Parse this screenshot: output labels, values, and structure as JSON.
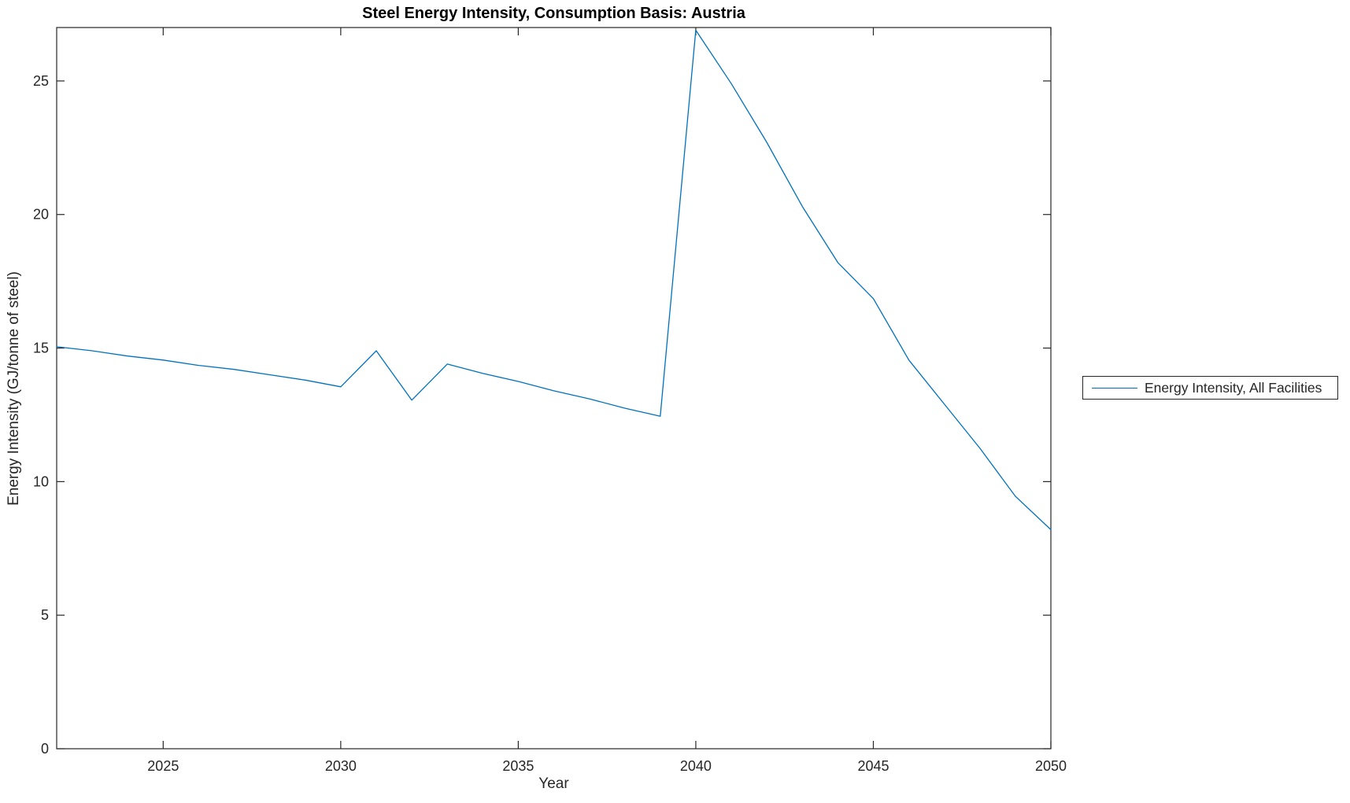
{
  "title": "Steel Energy Intensity, Consumption Basis: Austria",
  "legend": {
    "entries": [
      {
        "label": "Energy Intensity, All Facilities",
        "color": "#0072BD"
      }
    ]
  },
  "colors": {
    "line": "#0072BD",
    "axis": "#262626",
    "title": "#000000",
    "background": "#ffffff"
  },
  "chart_data": {
    "type": "line",
    "title": "Steel Energy Intensity, Consumption Basis: Austria",
    "xlabel": "Year",
    "ylabel": "Energy Intensity (GJ/tonne of steel)",
    "xlim": [
      2022,
      2050
    ],
    "ylim": [
      0,
      27
    ],
    "x_ticks": [
      2025,
      2030,
      2035,
      2040,
      2045,
      2050
    ],
    "y_ticks": [
      0,
      5,
      10,
      15,
      20,
      25
    ],
    "grid": false,
    "box": true,
    "legend_position": "right-outside",
    "series": [
      {
        "name": "Energy Intensity, All Facilities",
        "color": "#0072BD",
        "x": [
          2022,
          2023,
          2024,
          2025,
          2026,
          2027,
          2028,
          2029,
          2030,
          2031,
          2032,
          2033,
          2034,
          2035,
          2036,
          2037,
          2038,
          2039,
          2040,
          2041,
          2042,
          2043,
          2044,
          2045,
          2046,
          2047,
          2048,
          2049,
          2050
        ],
        "values": [
          15.05,
          14.9,
          14.7,
          14.55,
          14.35,
          14.2,
          14.0,
          13.8,
          13.55,
          14.9,
          13.05,
          14.4,
          14.05,
          13.75,
          13.4,
          13.1,
          12.75,
          12.45,
          26.9,
          24.9,
          22.7,
          20.3,
          18.2,
          16.85,
          14.55,
          12.9,
          11.25,
          9.45,
          8.2
        ]
      }
    ]
  }
}
